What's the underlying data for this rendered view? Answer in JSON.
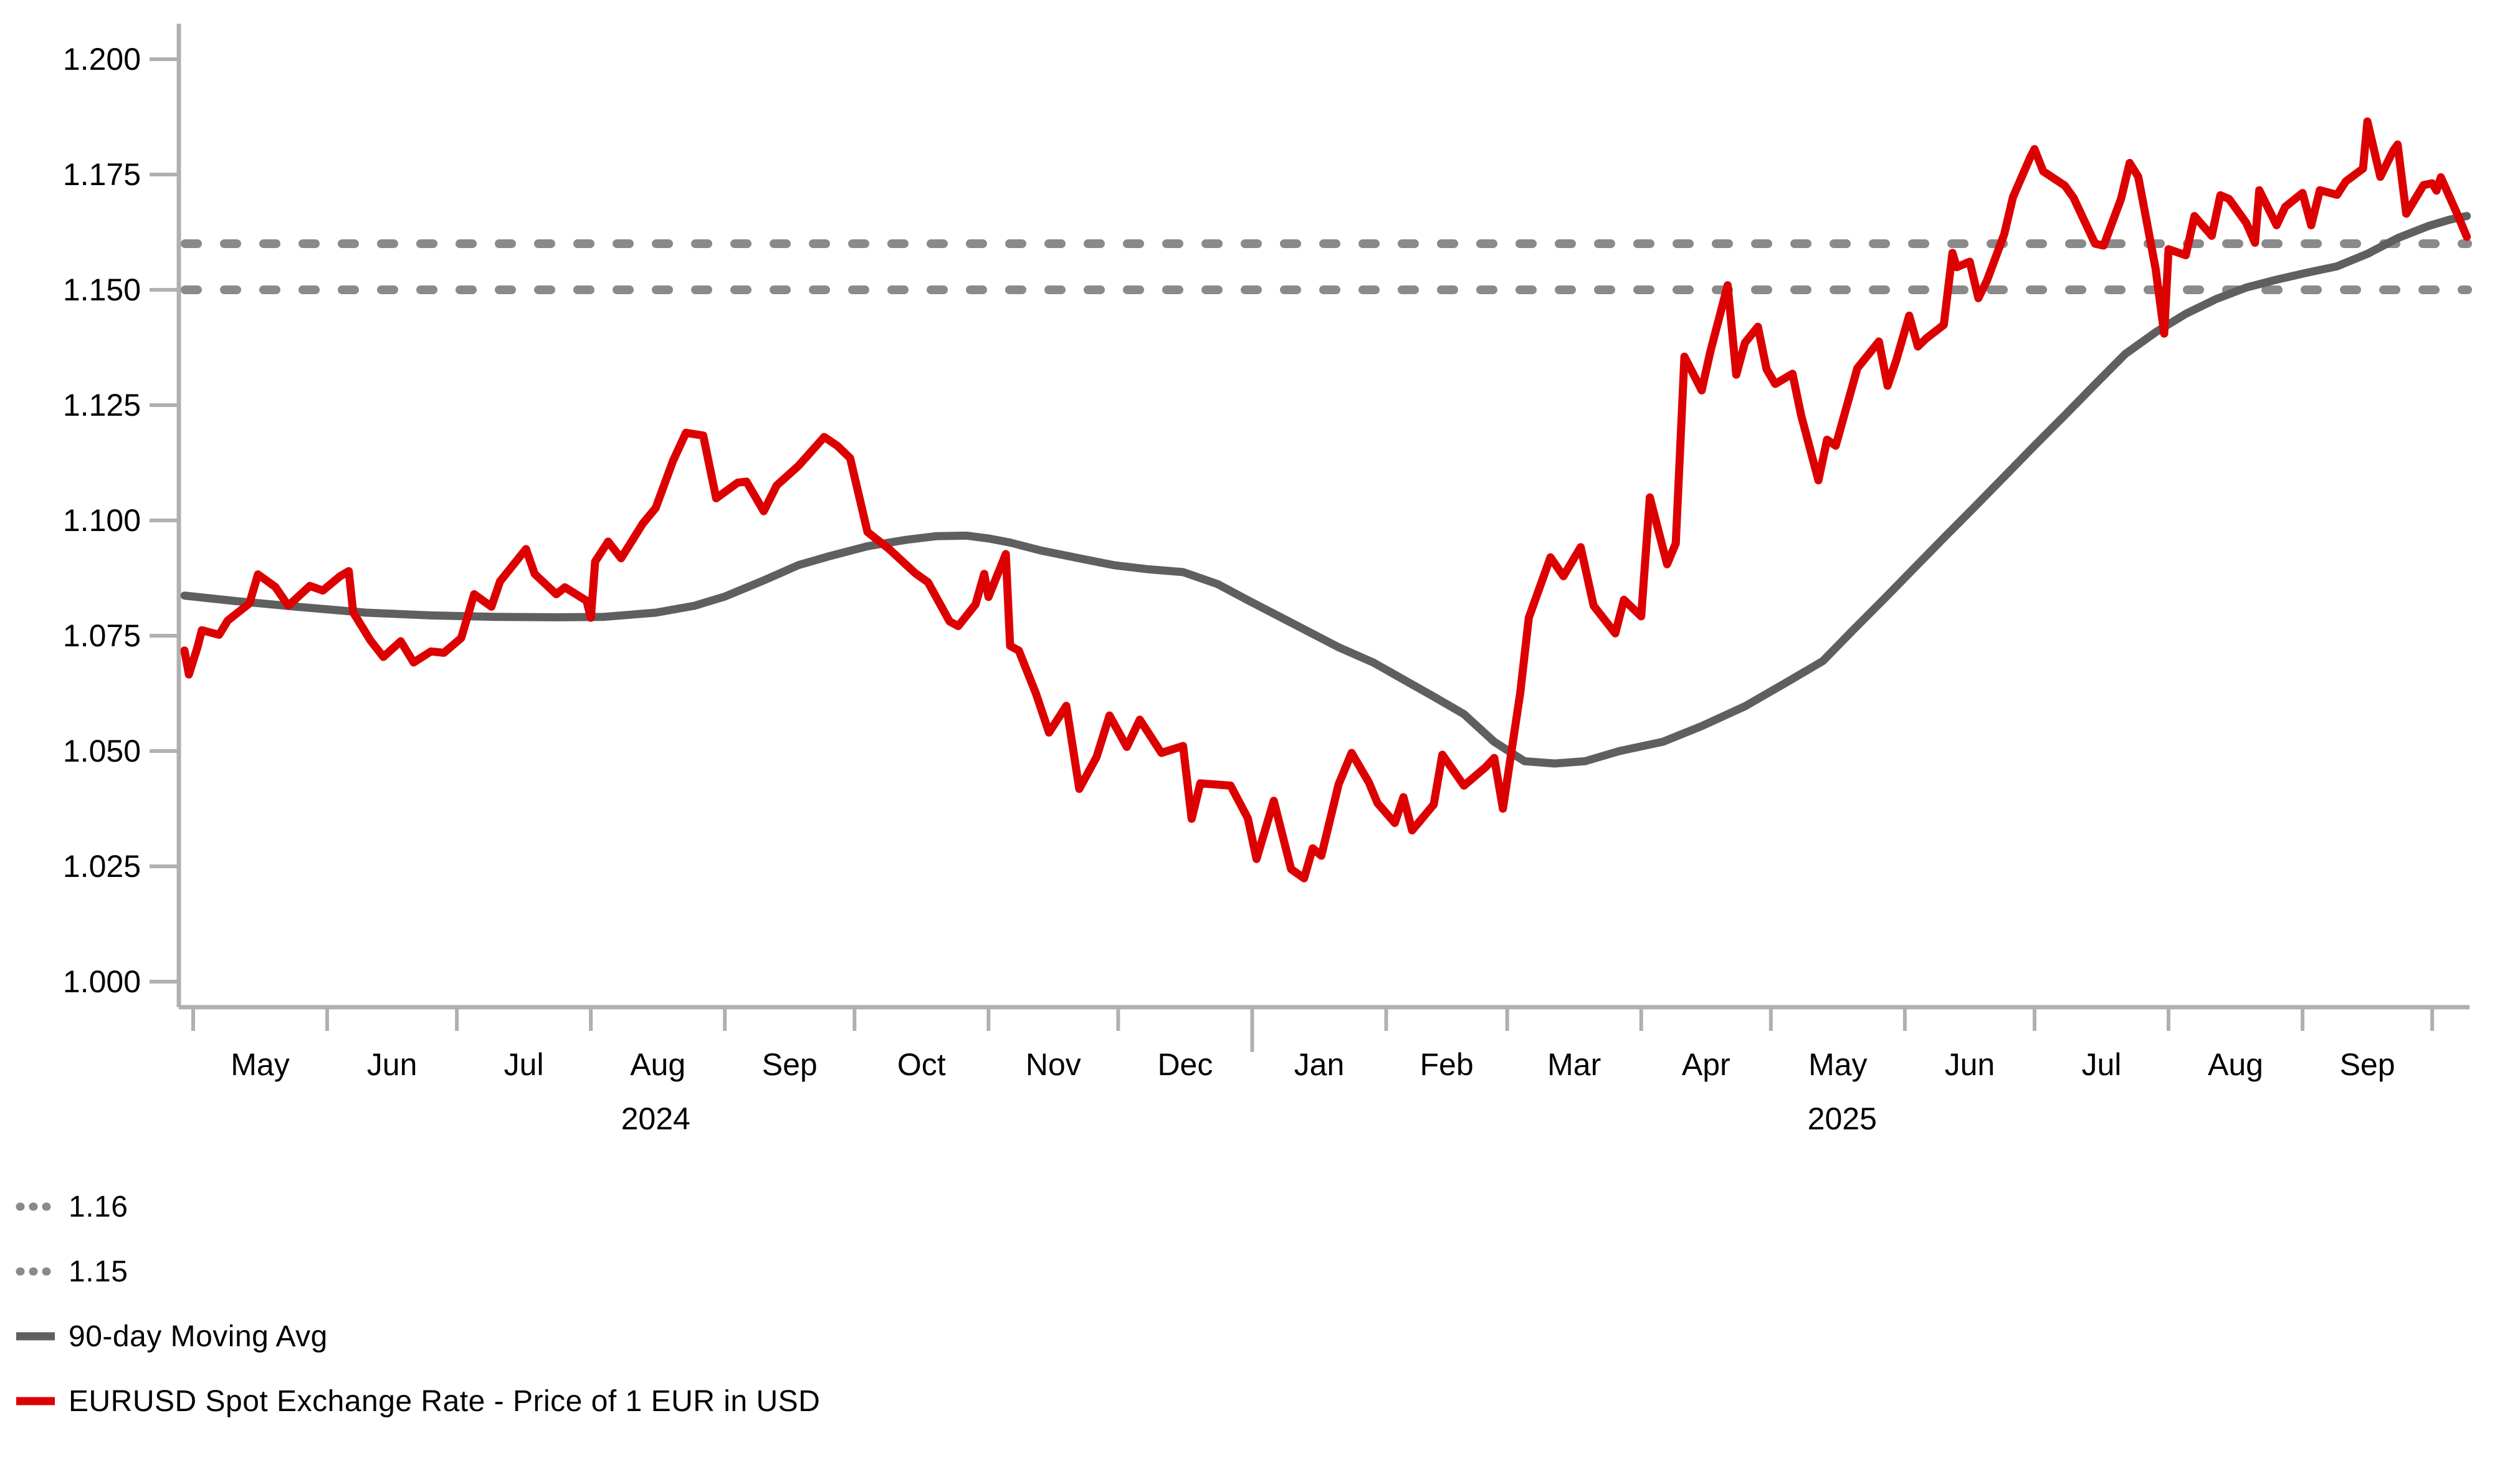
{
  "chart_data": {
    "type": "line",
    "title": "",
    "colors": {
      "spot": "#DD0000",
      "moving_avg": "#5F5F5F",
      "reference": "#8A8A8A",
      "axis": "#B0B0B0",
      "text": "#000000"
    },
    "y_axis": {
      "ticks": [
        1.0,
        1.025,
        1.05,
        1.075,
        1.1,
        1.125,
        1.15,
        1.175,
        1.2
      ],
      "range": [
        1.0,
        1.2
      ],
      "format": "3-decimals"
    },
    "x_axis": {
      "epoch": "days relative to 2024-05-01",
      "month_ticks": [
        {
          "d": 0
        },
        {
          "d": 31
        },
        {
          "d": 61
        },
        {
          "d": 92
        },
        {
          "d": 123
        },
        {
          "d": 153
        },
        {
          "d": 184
        },
        {
          "d": 214
        },
        {
          "d": 245,
          "major": true
        },
        {
          "d": 276
        },
        {
          "d": 304
        },
        {
          "d": 335
        },
        {
          "d": 365
        },
        {
          "d": 396
        },
        {
          "d": 426
        },
        {
          "d": 457
        },
        {
          "d": 488
        },
        {
          "d": 518
        }
      ],
      "month_labels": [
        {
          "d": 15.5,
          "label": "May"
        },
        {
          "d": 46,
          "label": "Jun"
        },
        {
          "d": 76.5,
          "label": "Jul"
        },
        {
          "d": 107.5,
          "label": "Aug"
        },
        {
          "d": 138,
          "label": "Sep"
        },
        {
          "d": 168.5,
          "label": "Oct"
        },
        {
          "d": 199,
          "label": "Nov"
        },
        {
          "d": 229.5,
          "label": "Dec"
        },
        {
          "d": 260.5,
          "label": "Jan"
        },
        {
          "d": 290,
          "label": "Feb"
        },
        {
          "d": 319.5,
          "label": "Mar"
        },
        {
          "d": 350,
          "label": "Apr"
        },
        {
          "d": 380.5,
          "label": "May"
        },
        {
          "d": 411,
          "label": "Jun"
        },
        {
          "d": 441.5,
          "label": "Jul"
        },
        {
          "d": 472.5,
          "label": "Aug"
        },
        {
          "d": 503,
          "label": "Sep"
        }
      ],
      "year_labels": [
        {
          "d": 107,
          "label": "2024"
        },
        {
          "d": 381.5,
          "label": "2025"
        }
      ]
    },
    "reference_lines": [
      {
        "label": "1.16",
        "value": 1.16
      },
      {
        "label": "1.15",
        "value": 1.15
      }
    ],
    "series": [
      {
        "name": "90-day Moving Avg",
        "color": "#5F5F5F",
        "style": "solid",
        "width": 13,
        "points": [
          [
            -2,
            1.0837
          ],
          [
            10,
            1.0825
          ],
          [
            25,
            1.0812
          ],
          [
            40,
            1.08
          ],
          [
            55,
            1.0794
          ],
          [
            70,
            1.0791
          ],
          [
            85,
            1.079
          ],
          [
            95,
            1.0791
          ],
          [
            107,
            1.08
          ],
          [
            116,
            1.0815
          ],
          [
            123,
            1.0835
          ],
          [
            132,
            1.087
          ],
          [
            140,
            1.0903
          ],
          [
            147,
            1.0922
          ],
          [
            156,
            1.0944
          ],
          [
            165,
            1.0958
          ],
          [
            172,
            1.0966
          ],
          [
            179,
            1.0967
          ],
          [
            184,
            1.0961
          ],
          [
            189,
            1.0952
          ],
          [
            196,
            1.0935
          ],
          [
            205,
            1.0918
          ],
          [
            213,
            1.0903
          ],
          [
            221,
            1.0894
          ],
          [
            229,
            1.0888
          ],
          [
            237,
            1.0862
          ],
          [
            244,
            1.0827
          ],
          [
            251,
            1.0793
          ],
          [
            258,
            1.0759
          ],
          [
            265,
            1.0725
          ],
          [
            273,
            1.0692
          ],
          [
            280,
            1.0655
          ],
          [
            287,
            1.0618
          ],
          [
            294,
            1.058
          ],
          [
            301,
            1.052
          ],
          [
            308,
            1.0478
          ],
          [
            315,
            1.0473
          ],
          [
            322,
            1.0478
          ],
          [
            330,
            1.05
          ],
          [
            340,
            1.052
          ],
          [
            349,
            1.0554
          ],
          [
            359,
            1.0597
          ],
          [
            369,
            1.0651
          ],
          [
            377,
            1.0695
          ],
          [
            384,
            1.0762
          ],
          [
            391,
            1.0828
          ],
          [
            398,
            1.0895
          ],
          [
            405,
            1.0962
          ],
          [
            412,
            1.1028
          ],
          [
            419,
            1.1095
          ],
          [
            426,
            1.1162
          ],
          [
            433,
            1.1228
          ],
          [
            440,
            1.1295
          ],
          [
            447,
            1.1361
          ],
          [
            454,
            1.1408
          ],
          [
            461,
            1.1448
          ],
          [
            468,
            1.148
          ],
          [
            475,
            1.1505
          ],
          [
            482,
            1.1522
          ],
          [
            489,
            1.1537
          ],
          [
            496,
            1.1551
          ],
          [
            503,
            1.1578
          ],
          [
            510,
            1.1612
          ],
          [
            517,
            1.1638
          ],
          [
            522,
            1.1652
          ],
          [
            526,
            1.166
          ]
        ]
      },
      {
        "name": "EURUSD Spot Exchange Rate - Price of 1 EUR in USD",
        "color": "#DD0000",
        "style": "solid",
        "width": 13,
        "points": [
          [
            -2,
            1.0718
          ],
          [
            -1,
            1.0666
          ],
          [
            1,
            1.0725
          ],
          [
            2,
            1.0762
          ],
          [
            6,
            1.0752
          ],
          [
            8,
            1.0783
          ],
          [
            13,
            1.082
          ],
          [
            15,
            1.0883
          ],
          [
            19,
            1.0856
          ],
          [
            22,
            1.0815
          ],
          [
            27,
            1.0858
          ],
          [
            30,
            1.0848
          ],
          [
            34,
            1.0879
          ],
          [
            36,
            1.089
          ],
          [
            37,
            1.0801
          ],
          [
            41,
            1.074
          ],
          [
            44,
            1.0704
          ],
          [
            48,
            1.0738
          ],
          [
            51,
            1.0692
          ],
          [
            55,
            1.0716
          ],
          [
            58,
            1.0713
          ],
          [
            62,
            1.0745
          ],
          [
            65,
            1.084
          ],
          [
            69,
            1.0813
          ],
          [
            71,
            1.0868
          ],
          [
            77,
            1.0938
          ],
          [
            79,
            1.0884
          ],
          [
            84,
            1.084
          ],
          [
            86,
            1.0855
          ],
          [
            91,
            1.0826
          ],
          [
            92,
            1.0789
          ],
          [
            93,
            1.0911
          ],
          [
            96,
            1.0954
          ],
          [
            99,
            1.0918
          ],
          [
            104,
            1.0993
          ],
          [
            107,
            1.1027
          ],
          [
            111,
            1.1129
          ],
          [
            114,
            1.119
          ],
          [
            118,
            1.1184
          ],
          [
            121,
            1.1048
          ],
          [
            126,
            1.1082
          ],
          [
            128,
            1.1084
          ],
          [
            132,
            1.102
          ],
          [
            135,
            1.1076
          ],
          [
            140,
            1.1118
          ],
          [
            146,
            1.1181
          ],
          [
            149,
            1.1162
          ],
          [
            152,
            1.1135
          ],
          [
            156,
            1.0975
          ],
          [
            161,
            1.0938
          ],
          [
            167,
            1.0886
          ],
          [
            170,
            1.0866
          ],
          [
            175,
            1.0781
          ],
          [
            177,
            1.0771
          ],
          [
            181,
            1.0818
          ],
          [
            183,
            1.0884
          ],
          [
            184,
            1.0834
          ],
          [
            188,
            1.0927
          ],
          [
            189,
            1.0728
          ],
          [
            191,
            1.0718
          ],
          [
            195,
            1.0624
          ],
          [
            198,
            1.054
          ],
          [
            202,
            1.0598
          ],
          [
            205,
            1.0418
          ],
          [
            209,
            1.0487
          ],
          [
            212,
            1.0577
          ],
          [
            216,
            1.0509
          ],
          [
            219,
            1.0568
          ],
          [
            224,
            1.0496
          ],
          [
            229,
            1.0511
          ],
          [
            231,
            1.0353
          ],
          [
            233,
            1.043
          ],
          [
            240,
            1.0425
          ],
          [
            244,
            1.0354
          ],
          [
            246,
            1.0266
          ],
          [
            250,
            1.0392
          ],
          [
            252,
            1.0318
          ],
          [
            254,
            1.0244
          ],
          [
            257,
            1.0224
          ],
          [
            259,
            1.0289
          ],
          [
            261,
            1.0273
          ],
          [
            265,
            1.0428
          ],
          [
            268,
            1.0496
          ],
          [
            272,
            1.0432
          ],
          [
            274,
            1.0387
          ],
          [
            278,
            1.0344
          ],
          [
            280,
            1.04
          ],
          [
            282,
            1.0328
          ],
          [
            287,
            1.0384
          ],
          [
            289,
            1.0492
          ],
          [
            294,
            1.0425
          ],
          [
            299,
            1.0465
          ],
          [
            301,
            1.0485
          ],
          [
            303,
            1.0375
          ],
          [
            307,
            1.0625
          ],
          [
            309,
            1.0789
          ],
          [
            314,
            1.092
          ],
          [
            317,
            1.0879
          ],
          [
            321,
            1.0942
          ],
          [
            324,
            1.0815
          ],
          [
            329,
            1.0755
          ],
          [
            331,
            1.0828
          ],
          [
            335,
            1.0792
          ],
          [
            337,
            1.105
          ],
          [
            341,
            1.0905
          ],
          [
            343,
            1.095
          ],
          [
            345,
            1.1355
          ],
          [
            349,
            1.1282
          ],
          [
            351,
            1.1366
          ],
          [
            355,
            1.151
          ],
          [
            357,
            1.1316
          ],
          [
            359,
            1.1385
          ],
          [
            362,
            1.142
          ],
          [
            364,
            1.1328
          ],
          [
            366,
            1.1296
          ],
          [
            370,
            1.1318
          ],
          [
            372,
            1.1228
          ],
          [
            376,
            1.1087
          ],
          [
            378,
            1.1175
          ],
          [
            380,
            1.1162
          ],
          [
            385,
            1.133
          ],
          [
            390,
            1.1388
          ],
          [
            392,
            1.1292
          ],
          [
            394,
            1.1347
          ],
          [
            397,
            1.1444
          ],
          [
            399,
            1.1377
          ],
          [
            401,
            1.1395
          ],
          [
            405,
            1.1424
          ],
          [
            407,
            1.158
          ],
          [
            408,
            1.1549
          ],
          [
            411,
            1.1561
          ],
          [
            413,
            1.1482
          ],
          [
            415,
            1.152
          ],
          [
            419,
            1.1621
          ],
          [
            421,
            1.1701
          ],
          [
            425,
            1.1787
          ],
          [
            426,
            1.1805
          ],
          [
            428,
            1.1757
          ],
          [
            433,
            1.1726
          ],
          [
            435,
            1.17
          ],
          [
            440,
            1.16
          ],
          [
            442,
            1.1596
          ],
          [
            446,
            1.1697
          ],
          [
            448,
            1.1775
          ],
          [
            450,
            1.1745
          ],
          [
            454,
            1.1546
          ],
          [
            456,
            1.1405
          ],
          [
            457,
            1.1588
          ],
          [
            461,
            1.1575
          ],
          [
            463,
            1.166
          ],
          [
            467,
            1.1617
          ],
          [
            469,
            1.1705
          ],
          [
            471,
            1.1697
          ],
          [
            475,
            1.1645
          ],
          [
            477,
            1.1602
          ],
          [
            478,
            1.1716
          ],
          [
            482,
            1.164
          ],
          [
            484,
            1.168
          ],
          [
            488,
            1.171
          ],
          [
            490,
            1.164
          ],
          [
            492,
            1.1716
          ],
          [
            496,
            1.1706
          ],
          [
            498,
            1.1735
          ],
          [
            502,
            1.1763
          ],
          [
            503,
            1.1865
          ],
          [
            505,
            1.1785
          ],
          [
            506,
            1.1745
          ],
          [
            509,
            1.1802
          ],
          [
            510,
            1.1815
          ],
          [
            512,
            1.1665
          ],
          [
            516,
            1.1727
          ],
          [
            518,
            1.1731
          ],
          [
            519,
            1.1715
          ],
          [
            520,
            1.1744
          ],
          [
            524,
            1.166
          ],
          [
            526,
            1.1615
          ]
        ]
      }
    ],
    "legend": {
      "position": "bottom-left",
      "entries": [
        {
          "label": "1.16",
          "swatch": "dashed-gray"
        },
        {
          "label": "1.15",
          "swatch": "dashed-gray"
        },
        {
          "label": "90-day Moving Avg",
          "swatch": "solid-gray"
        },
        {
          "label": "EURUSD Spot Exchange Rate - Price of 1 EUR in USD",
          "swatch": "solid-red"
        }
      ]
    }
  }
}
